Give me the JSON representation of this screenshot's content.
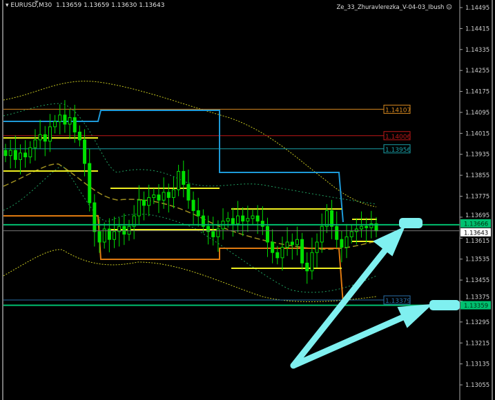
{
  "header": {
    "symbol": "EURUSD,M30",
    "ohlc": "1.13659 1.13659 1.13630 1.13643",
    "indicator": "Ze_33_Zhuravlerezka_V-04-03_Ibush"
  },
  "chart_data": {
    "type": "candlestick",
    "symbol": "EURUSD",
    "timeframe": "M30",
    "ylim": [
      1.13015,
      1.14525
    ],
    "y_ticks": [
      "1.14495",
      "1.14415",
      "1.14335",
      "1.14255",
      "1.14175",
      "1.14095",
      "1.14015",
      "1.13935",
      "1.13855",
      "1.13775",
      "1.13695",
      "1.13615",
      "1.13535",
      "1.13455",
      "1.13375",
      "1.13295",
      "1.13215",
      "1.13135",
      "1.13055"
    ],
    "closes": [
      1.1393,
      1.1395,
      1.13915,
      1.1394,
      1.13925,
      1.1396,
      1.1399,
      1.1401,
      1.13985,
      1.1404,
      1.1406,
      1.14085,
      1.1405,
      1.14075,
      1.1402,
      1.1399,
      1.139,
      1.1375,
      1.1364,
      1.136,
      1.1365,
      1.1361,
      1.1364,
      1.1366,
      1.1363,
      1.1366,
      1.137,
      1.1376,
      1.1374,
      1.1377,
      1.1378,
      1.1376,
      1.1379,
      1.1377,
      1.138,
      1.1387,
      1.1382,
      1.1376,
      1.1372,
      1.137,
      1.1366,
      1.1364,
      1.1362,
      1.1365,
      1.1368,
      1.1369,
      1.1367,
      1.137,
      1.1368,
      1.1369,
      1.137,
      1.1368,
      1.1366,
      1.136,
      1.1356,
      1.1354,
      1.1358,
      1.136,
      1.1359,
      1.1361,
      1.1352,
      1.1349,
      1.1356,
      1.136,
      1.1366,
      1.1372,
      1.1366,
      1.1361,
      1.1358,
      1.1362,
      1.1364,
      1.1365,
      1.1366,
      1.13655,
      1.1367,
      1.13643
    ],
    "levels": [
      {
        "price": "1.14107",
        "color": "#d98a20",
        "label": "1.14107"
      },
      {
        "price": "1.14006",
        "color": "#c01818",
        "label": "1.14006"
      },
      {
        "price": "1.13956",
        "color": "#1aa0a8",
        "label": "1.13956"
      },
      {
        "price": "1.13379",
        "color": "#2a6fa8",
        "label": "1.13379"
      }
    ],
    "axis_labels": [
      {
        "price": "1.13666",
        "bg": "#00c070",
        "fg": "#003010",
        "label": "1.13666"
      },
      {
        "price": "1.13643",
        "bg": "#ffffff",
        "fg": "#000000",
        "label": "1.13643"
      },
      {
        "price": "1.13359",
        "bg": "#00c070",
        "fg": "#003010",
        "label": "1.13359"
      }
    ],
    "colors": {
      "candle": "#00e000",
      "axis_text": "#d0d0d0",
      "arrow": "#7ff0f0",
      "blue_step": "#1e9ad8",
      "orange_step": "#e07a10",
      "yellow": "#f0f020"
    }
  }
}
